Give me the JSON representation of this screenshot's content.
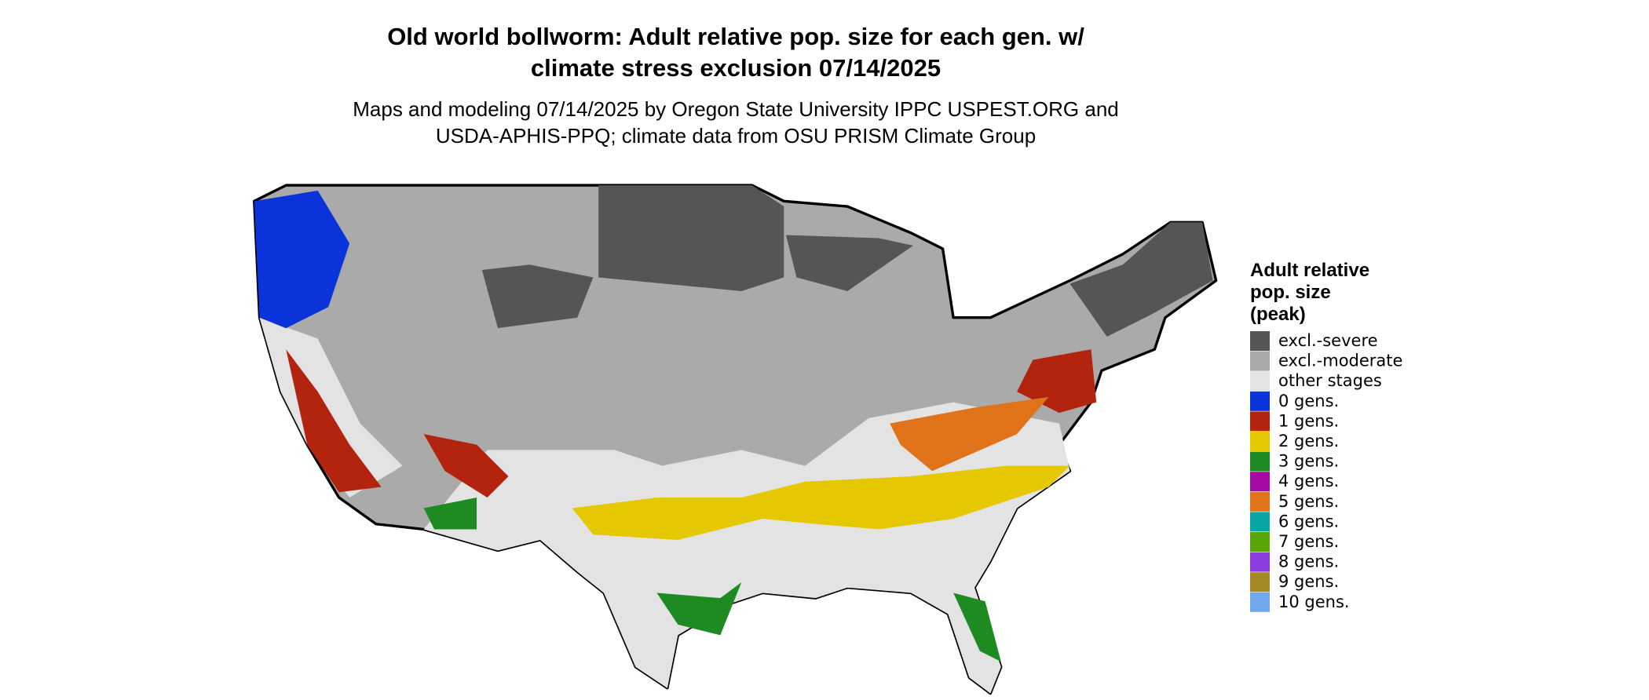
{
  "header": {
    "title": [
      "Old world bollworm: Adult relative pop. size for each gen. w/",
      "climate stress exclusion 07/14/2025"
    ],
    "subtitle": [
      "Maps and modeling 07/14/2025 by Oregon State University IPPC USPEST.ORG and",
      "USDA-APHIS-PPQ; climate data from OSU PRISM Climate Group"
    ]
  },
  "legend": {
    "title": [
      "Adult relative",
      "pop. size",
      "(peak)"
    ],
    "items": [
      {
        "label": "excl.-severe",
        "color": "#555555"
      },
      {
        "label": "excl.-moderate",
        "color": "#aaaaaa"
      },
      {
        "label": "other stages",
        "color": "#e3e3e3"
      },
      {
        "label": "0 gens.",
        "color": "#0a34d9"
      },
      {
        "label": "1 gens.",
        "color": "#b3240f"
      },
      {
        "label": "2 gens.",
        "color": "#e6c800"
      },
      {
        "label": "3 gens.",
        "color": "#1e8a22"
      },
      {
        "label": "4 gens.",
        "color": "#a50aa5"
      },
      {
        "label": "5 gens.",
        "color": "#e0731a"
      },
      {
        "label": "6 gens.",
        "color": "#0aa5a5"
      },
      {
        "label": "7 gens.",
        "color": "#5aa50a"
      },
      {
        "label": "8 gens.",
        "color": "#8a3ce0"
      },
      {
        "label": "9 gens.",
        "color": "#a58a23"
      },
      {
        "label": "10 gens.",
        "color": "#6fa8ec"
      }
    ]
  }
}
